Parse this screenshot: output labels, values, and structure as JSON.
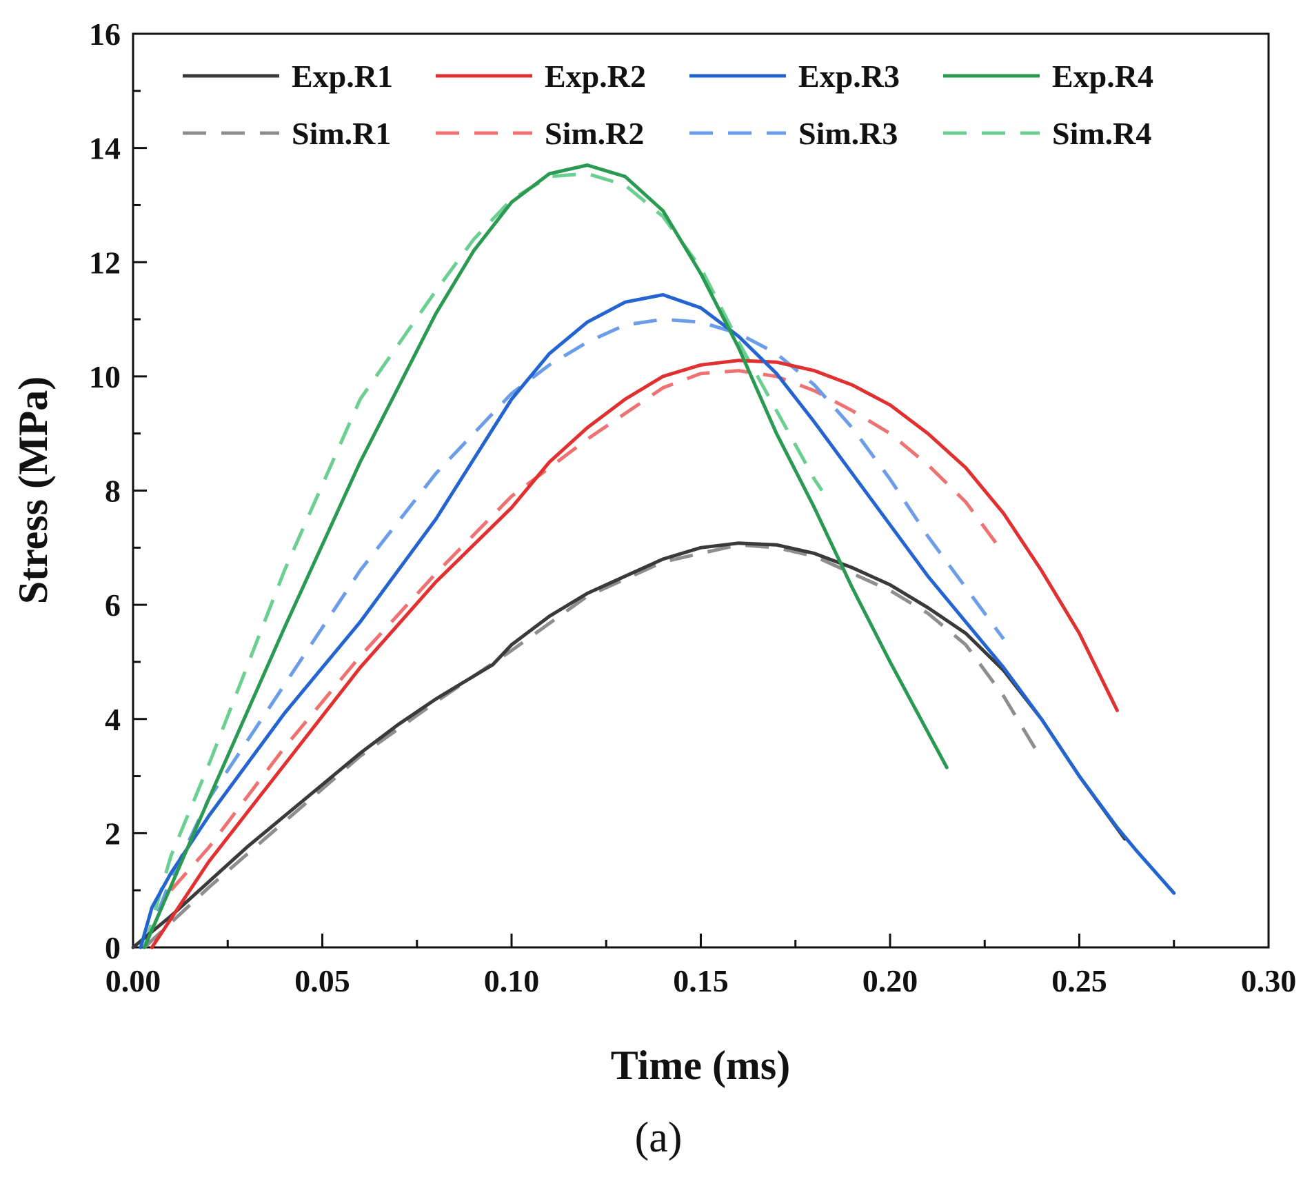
{
  "chart_data": {
    "type": "line",
    "title": "",
    "xlabel": "Time (ms)",
    "ylabel": "Stress (MPa)",
    "panel_label": "(a)",
    "xlim": [
      0,
      0.3
    ],
    "ylim": [
      0,
      16
    ],
    "xticks": [
      0.0,
      0.05,
      0.1,
      0.15,
      0.2,
      0.25,
      0.3
    ],
    "xtick_labels": [
      "0.00",
      "0.05",
      "0.10",
      "0.15",
      "0.20",
      "0.25",
      "0.30"
    ],
    "yticks": [
      0,
      2,
      4,
      6,
      8,
      10,
      12,
      14,
      16
    ],
    "ytick_labels": [
      "0",
      "2",
      "4",
      "6",
      "8",
      "10",
      "12",
      "14",
      "16"
    ],
    "grid": false,
    "legend_position": "top",
    "series": [
      {
        "name": "Exp.R1",
        "color": "#3a3a3a",
        "style": "solid",
        "x": [
          0,
          0.01,
          0.02,
          0.03,
          0.04,
          0.05,
          0.06,
          0.07,
          0.08,
          0.09,
          0.095,
          0.1,
          0.11,
          0.12,
          0.13,
          0.14,
          0.15,
          0.16,
          0.17,
          0.18,
          0.19,
          0.2,
          0.21,
          0.22,
          0.23,
          0.24,
          0.25,
          0.262
        ],
        "y": [
          0,
          0.55,
          1.15,
          1.75,
          2.3,
          2.85,
          3.4,
          3.9,
          4.35,
          4.75,
          4.95,
          5.3,
          5.8,
          6.2,
          6.5,
          6.8,
          7.0,
          7.08,
          7.05,
          6.9,
          6.65,
          6.35,
          5.95,
          5.5,
          4.85,
          4.0,
          3.0,
          1.9
        ]
      },
      {
        "name": "Exp.R2",
        "color": "#e03030",
        "style": "solid",
        "x": [
          0.005,
          0.02,
          0.04,
          0.06,
          0.08,
          0.1,
          0.11,
          0.12,
          0.13,
          0.14,
          0.15,
          0.16,
          0.17,
          0.18,
          0.19,
          0.2,
          0.21,
          0.22,
          0.23,
          0.24,
          0.25,
          0.26
        ],
        "y": [
          0,
          1.5,
          3.2,
          4.9,
          6.4,
          7.7,
          8.5,
          9.1,
          9.6,
          10.0,
          10.2,
          10.28,
          10.25,
          10.1,
          9.85,
          9.5,
          9.0,
          8.4,
          7.6,
          6.6,
          5.5,
          4.15
        ]
      },
      {
        "name": "Exp.R3",
        "color": "#2464d0",
        "style": "solid",
        "x": [
          0.002,
          0.005,
          0.01,
          0.02,
          0.04,
          0.06,
          0.08,
          0.1,
          0.11,
          0.12,
          0.13,
          0.14,
          0.15,
          0.16,
          0.17,
          0.18,
          0.19,
          0.2,
          0.21,
          0.22,
          0.23,
          0.24,
          0.25,
          0.26,
          0.265,
          0.275
        ],
        "y": [
          0,
          0.7,
          1.3,
          2.3,
          4.1,
          5.7,
          7.5,
          9.6,
          10.4,
          10.95,
          11.3,
          11.43,
          11.2,
          10.7,
          10.05,
          9.2,
          8.3,
          7.4,
          6.5,
          5.7,
          4.9,
          4.0,
          3.0,
          2.1,
          1.7,
          0.95
        ]
      },
      {
        "name": "Exp.R4",
        "color": "#2a9a52",
        "style": "solid",
        "x": [
          0.003,
          0.02,
          0.04,
          0.06,
          0.08,
          0.09,
          0.1,
          0.11,
          0.12,
          0.13,
          0.14,
          0.15,
          0.16,
          0.17,
          0.18,
          0.19,
          0.2,
          0.215
        ],
        "y": [
          0,
          2.6,
          5.6,
          8.5,
          11.1,
          12.2,
          13.05,
          13.55,
          13.7,
          13.5,
          12.9,
          11.8,
          10.5,
          9.0,
          7.7,
          6.3,
          5.0,
          3.15
        ]
      },
      {
        "name": "Sim.R1",
        "color": "#8e8e8e",
        "style": "dashed",
        "x": [
          0.003,
          0.02,
          0.04,
          0.06,
          0.08,
          0.1,
          0.12,
          0.14,
          0.16,
          0.17,
          0.18,
          0.19,
          0.2,
          0.21,
          0.22,
          0.23,
          0.24
        ],
        "y": [
          0,
          1.05,
          2.2,
          3.35,
          4.3,
          5.2,
          6.15,
          6.75,
          7.05,
          7.0,
          6.85,
          6.55,
          6.25,
          5.85,
          5.3,
          4.4,
          3.3
        ]
      },
      {
        "name": "Sim.R2",
        "color": "#ef7272",
        "style": "dashed",
        "x": [
          0.01,
          0.02,
          0.04,
          0.06,
          0.08,
          0.1,
          0.12,
          0.13,
          0.14,
          0.15,
          0.16,
          0.17,
          0.18,
          0.19,
          0.2,
          0.21,
          0.22,
          0.23
        ],
        "y": [
          1.0,
          1.75,
          3.5,
          5.1,
          6.55,
          7.9,
          8.9,
          9.35,
          9.8,
          10.05,
          10.1,
          10.0,
          9.75,
          9.4,
          9.0,
          8.45,
          7.8,
          6.9
        ]
      },
      {
        "name": "Sim.R3",
        "color": "#6b9de8",
        "style": "dashed",
        "x": [
          0.003,
          0.01,
          0.02,
          0.04,
          0.06,
          0.08,
          0.09,
          0.1,
          0.11,
          0.12,
          0.13,
          0.14,
          0.15,
          0.16,
          0.17,
          0.18,
          0.19,
          0.2,
          0.21,
          0.22,
          0.23
        ],
        "y": [
          0,
          1.2,
          2.6,
          4.6,
          6.6,
          8.3,
          9.0,
          9.7,
          10.2,
          10.6,
          10.9,
          11.0,
          10.95,
          10.75,
          10.4,
          9.85,
          9.1,
          8.2,
          7.2,
          6.3,
          5.4
        ]
      },
      {
        "name": "Sim.R4",
        "color": "#6ccf92",
        "style": "dashed",
        "x": [
          0.003,
          0.01,
          0.02,
          0.04,
          0.06,
          0.08,
          0.09,
          0.1,
          0.11,
          0.12,
          0.13,
          0.14,
          0.15,
          0.16,
          0.17,
          0.18,
          0.182
        ],
        "y": [
          0,
          1.6,
          3.2,
          6.6,
          9.6,
          11.5,
          12.4,
          13.1,
          13.5,
          13.55,
          13.35,
          12.8,
          11.9,
          10.6,
          9.4,
          8.2,
          8.0
        ]
      }
    ]
  }
}
